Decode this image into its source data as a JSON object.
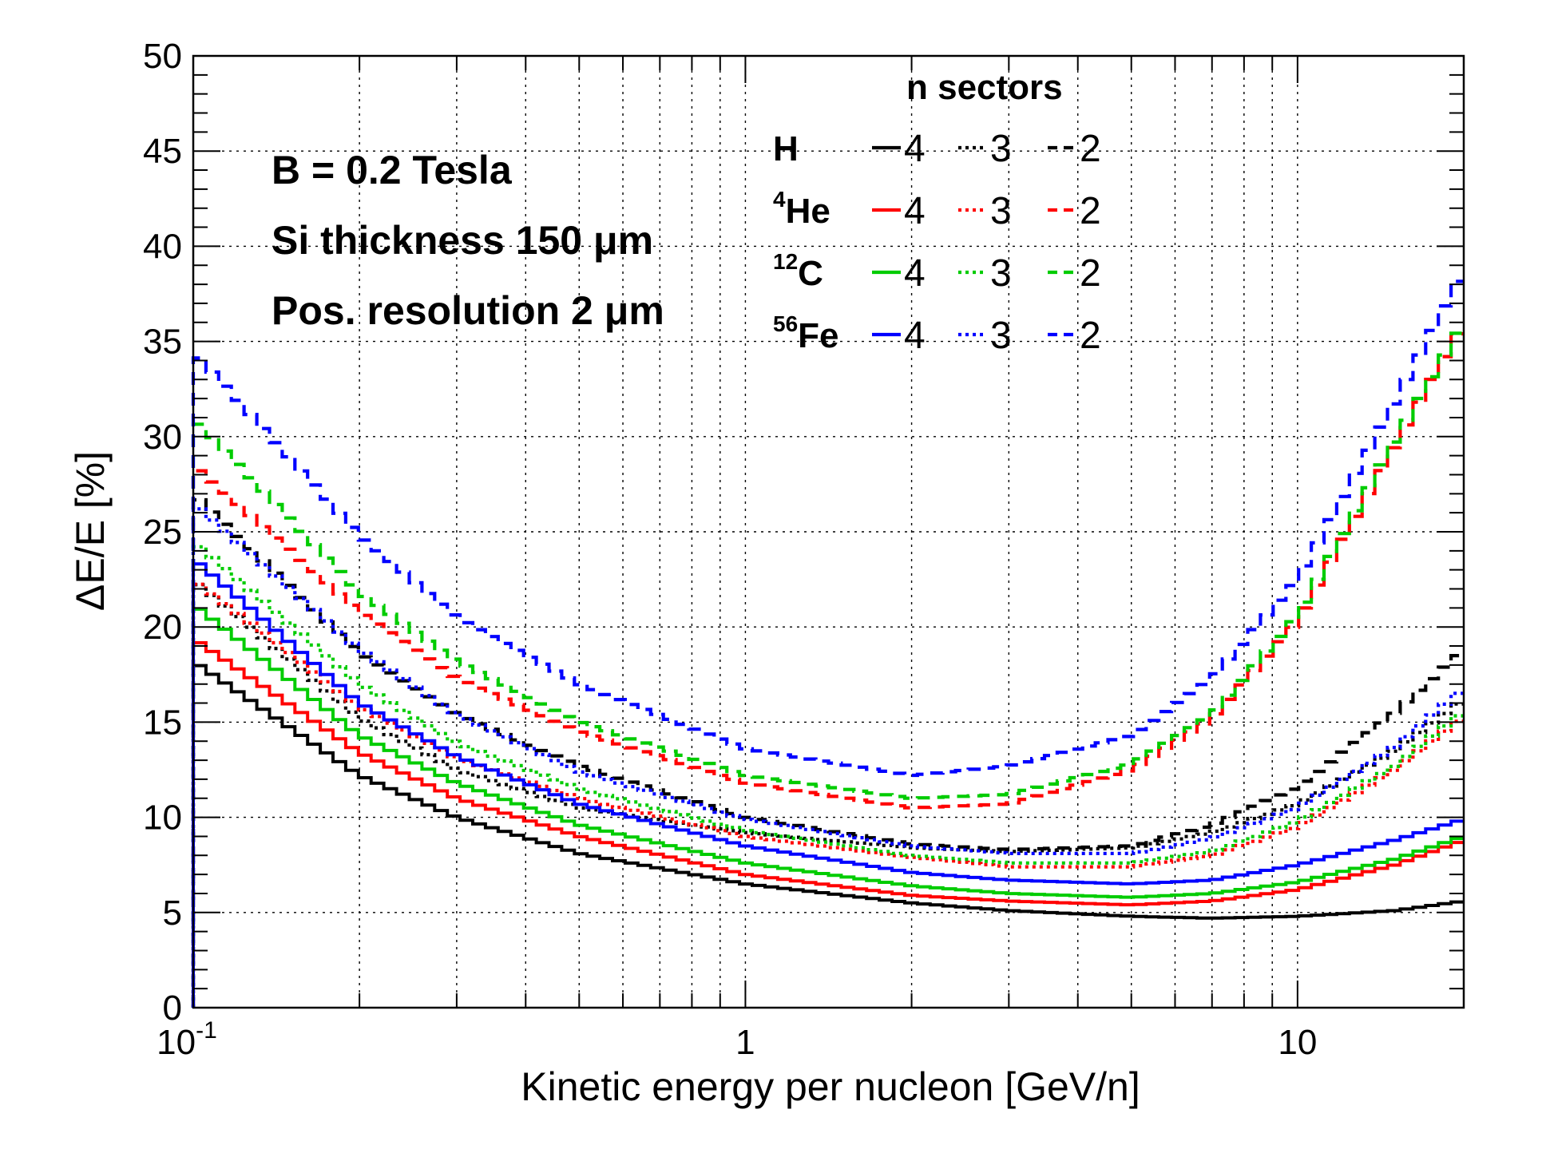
{
  "chart_data": {
    "type": "line",
    "xscale": "log",
    "xlim": [
      0.1,
      20
    ],
    "ylim": [
      0,
      50
    ],
    "grid": true,
    "xlabel": "Kinetic energy per nucleon [GeV/n]",
    "ylabel": "ΔE/E [%]",
    "x_ticks": [
      {
        "value": 0.1,
        "base": "10",
        "exp": "-1"
      },
      {
        "value": 1,
        "base": "1",
        "exp": ""
      },
      {
        "value": 10,
        "base": "10",
        "exp": ""
      }
    ],
    "y_ticks": [
      0,
      5,
      10,
      15,
      20,
      25,
      30,
      35,
      40,
      45,
      50
    ],
    "annotations": [
      "B = 0.2 Tesla",
      "Si thickness 150 μm",
      "Pos. resolution 2 μm"
    ],
    "legend": {
      "placement": "top-right",
      "header": "n sectors",
      "rows": [
        {
          "label": "H",
          "sup": "",
          "color": "#000000"
        },
        {
          "label": "He",
          "sup": "4",
          "color": "#ff0000"
        },
        {
          "label": "C",
          "sup": "12",
          "color": "#00cc00"
        },
        {
          "label": "Fe",
          "sup": "56",
          "color": "#0000ff"
        }
      ],
      "columns": [
        {
          "n": "4",
          "style": "solid"
        },
        {
          "n": "3",
          "style": "dotted"
        },
        {
          "n": "2",
          "style": "dashed"
        }
      ]
    },
    "series": [
      {
        "name": "H",
        "n": "4",
        "style": "solid",
        "color": "#000000",
        "x": [
          0.1,
          0.2,
          0.3,
          0.5,
          1,
          2,
          3,
          5,
          7,
          10,
          15,
          20
        ],
        "y": [
          18.2,
          12.2,
          10.0,
          8.1,
          6.5,
          5.5,
          5.1,
          4.8,
          4.7,
          4.8,
          5.1,
          5.6
        ]
      },
      {
        "name": "H",
        "n": "3",
        "style": "dotted",
        "color": "#000000",
        "x": [
          0.1,
          0.2,
          0.3,
          0.5,
          1,
          2,
          3,
          5,
          7,
          10,
          15,
          20
        ],
        "y": [
          22.5,
          15.2,
          12.5,
          10.5,
          9.2,
          8.4,
          8.2,
          8.4,
          9.2,
          10.7,
          13.5,
          16.2
        ]
      },
      {
        "name": "H",
        "n": "2",
        "style": "dashed",
        "color": "#000000",
        "x": [
          0.1,
          0.2,
          0.3,
          0.5,
          1,
          2,
          3,
          5,
          7,
          10,
          15,
          20
        ],
        "y": [
          27.0,
          18.6,
          15.4,
          12.7,
          10.0,
          8.6,
          8.3,
          8.5,
          9.6,
          11.6,
          15.5,
          18.8
        ]
      },
      {
        "name": "He",
        "n": "4",
        "style": "solid",
        "color": "#ff0000",
        "x": [
          0.1,
          0.2,
          0.3,
          0.5,
          1,
          2,
          3,
          5,
          7,
          10,
          15,
          20
        ],
        "y": [
          19.4,
          13.4,
          11.0,
          9.0,
          7.0,
          5.9,
          5.6,
          5.4,
          5.6,
          6.2,
          7.5,
          8.8
        ]
      },
      {
        "name": "He",
        "n": "3",
        "style": "dotted",
        "color": "#ff0000",
        "x": [
          0.1,
          0.2,
          0.3,
          0.5,
          1,
          2,
          3,
          5,
          7,
          10,
          15,
          20
        ],
        "y": [
          22.5,
          15.8,
          13.1,
          11.0,
          9.0,
          7.9,
          7.4,
          7.4,
          8.0,
          9.5,
          12.5,
          15.3
        ]
      },
      {
        "name": "He",
        "n": "2",
        "style": "dashed",
        "color": "#ff0000",
        "x": [
          0.1,
          0.2,
          0.3,
          0.5,
          1,
          2,
          3,
          5,
          7,
          10,
          15,
          20
        ],
        "y": [
          28.5,
          20.8,
          17.3,
          14.5,
          11.8,
          10.5,
          10.7,
          12.5,
          15.2,
          20.3,
          29.5,
          36.0
        ]
      },
      {
        "name": "C",
        "n": "4",
        "style": "solid",
        "color": "#00cc00",
        "x": [
          0.1,
          0.2,
          0.3,
          0.5,
          1,
          2,
          3,
          5,
          7,
          10,
          15,
          20
        ],
        "y": [
          21.2,
          14.3,
          11.8,
          9.6,
          7.6,
          6.4,
          6.0,
          5.8,
          6.0,
          6.6,
          7.8,
          9.0
        ]
      },
      {
        "name": "C",
        "n": "3",
        "style": "dotted",
        "color": "#00cc00",
        "x": [
          0.1,
          0.2,
          0.3,
          0.5,
          1,
          2,
          3,
          5,
          7,
          10,
          15,
          20
        ],
        "y": [
          24.5,
          17.0,
          13.9,
          11.5,
          9.3,
          8.0,
          7.6,
          7.6,
          8.2,
          9.8,
          12.7,
          15.6
        ]
      },
      {
        "name": "C",
        "n": "2",
        "style": "dashed",
        "color": "#00cc00",
        "x": [
          0.1,
          0.2,
          0.3,
          0.5,
          1,
          2,
          3,
          5,
          7,
          10,
          15,
          20
        ],
        "y": [
          31.0,
          21.8,
          18.2,
          15.0,
          12.2,
          11.0,
          11.2,
          12.8,
          15.4,
          20.6,
          29.8,
          36.0
        ]
      },
      {
        "name": "Fe",
        "n": "4",
        "style": "solid",
        "color": "#0000ff",
        "x": [
          0.1,
          0.2,
          0.3,
          0.5,
          1,
          2,
          3,
          5,
          7,
          10,
          15,
          20
        ],
        "y": [
          23.6,
          16.0,
          13.2,
          10.7,
          8.5,
          7.1,
          6.7,
          6.5,
          6.7,
          7.5,
          8.8,
          9.9
        ]
      },
      {
        "name": "Fe",
        "n": "3",
        "style": "dotted",
        "color": "#0000ff",
        "x": [
          0.1,
          0.2,
          0.3,
          0.5,
          1,
          2,
          3,
          5,
          7,
          10,
          15,
          20
        ],
        "y": [
          26.5,
          18.8,
          15.4,
          12.4,
          9.9,
          8.5,
          8.1,
          8.1,
          8.9,
          10.5,
          13.7,
          16.8
        ]
      },
      {
        "name": "Fe",
        "n": "2",
        "style": "dashed",
        "color": "#0000ff",
        "x": [
          0.1,
          0.2,
          0.3,
          0.5,
          1,
          2,
          3,
          5,
          7,
          10,
          15,
          20
        ],
        "y": [
          34.5,
          24.8,
          20.5,
          17.0,
          13.6,
          12.2,
          12.7,
          14.3,
          17.3,
          22.5,
          31.8,
          38.8
        ]
      }
    ]
  }
}
